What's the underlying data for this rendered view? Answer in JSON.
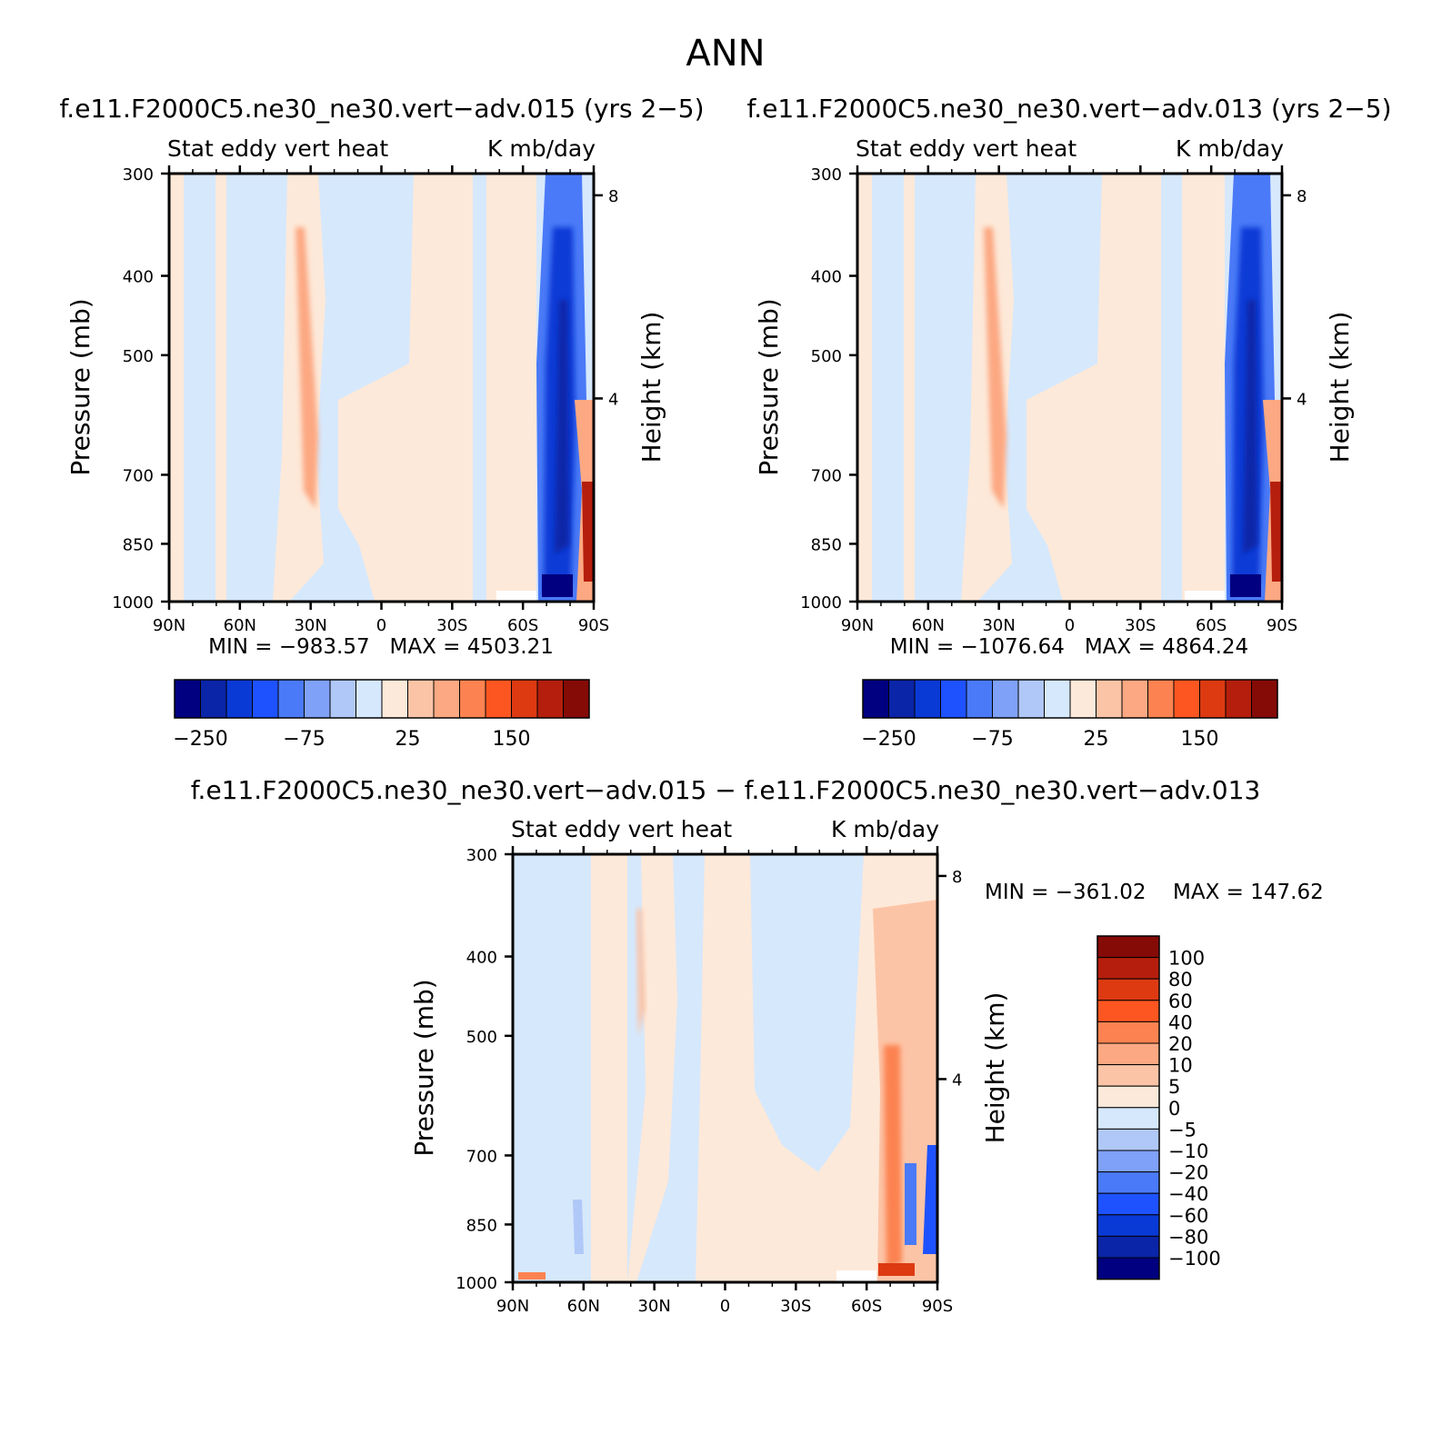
{
  "page_title": "ANN",
  "colors": {
    "cold": [
      "#000080",
      "#0a25a8",
      "#0a3ad6",
      "#1f52ff",
      "#4a7af7",
      "#7fa1f7",
      "#b0c8f8",
      "#d6e8fc"
    ],
    "warm": [
      "#fde9d9",
      "#fcc4a6",
      "#fca882",
      "#fc8351",
      "#fd5621",
      "#dd3a12",
      "#b51e0c",
      "#850b07"
    ]
  },
  "chart_data": [
    {
      "type": "contour",
      "title": "f.e11.F2000C5.ne30_ne30.vert−adv.015 (yrs 2−5)",
      "subtitle_left": "Stat eddy vert heat",
      "subtitle_right": "K mb/day",
      "ylabel": "Pressure (mb)",
      "ylabel_right": "Height (km)",
      "x_ticks": [
        "90N",
        "60N",
        "30N",
        "0",
        "30S",
        "60S",
        "90S"
      ],
      "x_values": [
        90,
        60,
        30,
        0,
        -30,
        -60,
        -90
      ],
      "y_ticks": [
        300,
        400,
        500,
        700,
        850,
        1000
      ],
      "y_right_ticks": [
        8,
        4
      ],
      "ylim": [
        1000,
        300
      ],
      "stats": "MIN = −983.57   MAX = 4503.21",
      "min": -983.57,
      "max": 4503.21,
      "colorbar_labels": [
        "−250",
        "−75",
        "25",
        "150"
      ]
    },
    {
      "type": "contour",
      "title": "f.e11.F2000C5.ne30_ne30.vert−adv.013 (yrs 2−5)",
      "subtitle_left": "Stat eddy vert heat",
      "subtitle_right": "K mb/day",
      "ylabel": "Pressure (mb)",
      "ylabel_right": "Height (km)",
      "x_ticks": [
        "90N",
        "60N",
        "30N",
        "0",
        "30S",
        "60S",
        "90S"
      ],
      "x_values": [
        90,
        60,
        30,
        0,
        -30,
        -60,
        -90
      ],
      "y_ticks": [
        300,
        400,
        500,
        700,
        850,
        1000
      ],
      "y_right_ticks": [
        8,
        4
      ],
      "ylim": [
        1000,
        300
      ],
      "stats": "MIN = −1076.64   MAX = 4864.24",
      "min": -1076.64,
      "max": 4864.24,
      "colorbar_labels": [
        "−250",
        "−75",
        "25",
        "150"
      ]
    },
    {
      "type": "contour",
      "title": "f.e11.F2000C5.ne30_ne30.vert−adv.015 − f.e11.F2000C5.ne30_ne30.vert−adv.013",
      "subtitle_left": "Stat eddy vert heat",
      "subtitle_right": "K mb/day",
      "ylabel": "Pressure (mb)",
      "ylabel_right": "Height (km)",
      "x_ticks": [
        "90N",
        "60N",
        "30N",
        "0",
        "30S",
        "60S",
        "90S"
      ],
      "x_values": [
        90,
        60,
        30,
        0,
        -30,
        -60,
        -90
      ],
      "y_ticks": [
        300,
        400,
        500,
        700,
        850,
        1000
      ],
      "y_right_ticks": [
        8,
        4
      ],
      "ylim": [
        1000,
        300
      ],
      "stats_min": "MIN = −361.02",
      "stats_max": "MAX = 147.62",
      "min": -361.02,
      "max": 147.62,
      "colorbar_labels": [
        "100",
        "80",
        "60",
        "40",
        "20",
        "10",
        "5",
        "0",
        "−5",
        "−10",
        "−20",
        "−40",
        "−60",
        "−80",
        "−100"
      ]
    }
  ]
}
